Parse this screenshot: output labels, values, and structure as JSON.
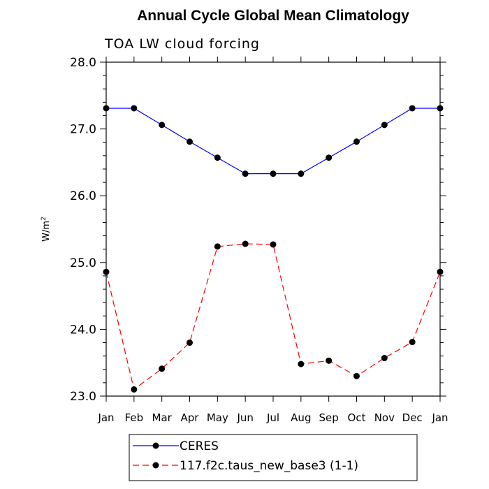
{
  "chart_data": {
    "type": "line",
    "title": "Annual Cycle Global Mean Climatology",
    "subtitle": "TOA LW cloud forcing",
    "ylabel": "W/m",
    "ylabel_sup": "2",
    "xlabel": "",
    "ylim": [
      23.0,
      28.0
    ],
    "yticks": [
      "23.0",
      "24.0",
      "25.0",
      "26.0",
      "27.0",
      "28.0"
    ],
    "categories": [
      "Jan",
      "Feb",
      "Mar",
      "Apr",
      "May",
      "Jun",
      "Jul",
      "Aug",
      "Sep",
      "Oct",
      "Nov",
      "Dec",
      "Jan"
    ],
    "grid": false,
    "legend_position": "bottom",
    "series": [
      {
        "name": "CERES",
        "color": "#0000ff",
        "style": "solid",
        "values": [
          27.31,
          27.31,
          27.06,
          26.81,
          26.57,
          26.33,
          26.33,
          26.33,
          26.57,
          26.81,
          27.06,
          27.31,
          27.31
        ]
      },
      {
        "name": "117.f2c.taus_new_base3 (1-1)",
        "color": "#ff0000",
        "style": "dashed",
        "values": [
          24.86,
          23.1,
          23.41,
          23.8,
          25.24,
          25.28,
          25.27,
          23.48,
          23.53,
          23.3,
          23.57,
          23.81,
          24.86
        ]
      }
    ]
  }
}
